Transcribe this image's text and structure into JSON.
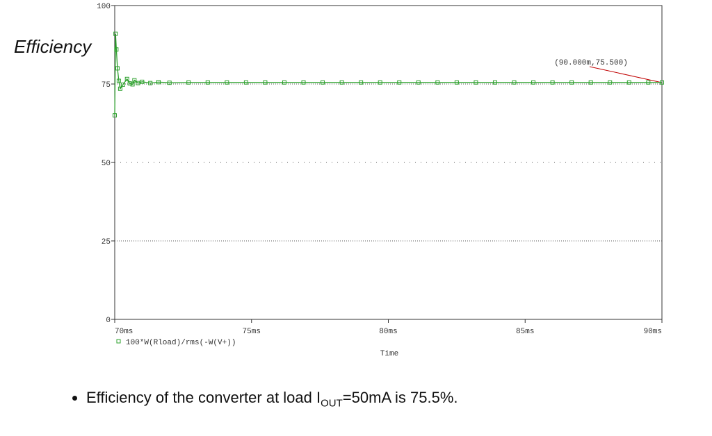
{
  "chart_data": {
    "type": "line",
    "title": "Efficiency",
    "x_label": "Time",
    "x": [
      70,
      70.03,
      70.06,
      70.1,
      70.15,
      70.2,
      70.3,
      70.45,
      70.55,
      70.65,
      70.72,
      70.85,
      71,
      71.3,
      71.6,
      72,
      72.7,
      73.4,
      74.1,
      74.8,
      75.5,
      76.2,
      76.9,
      77.6,
      78.3,
      79,
      79.7,
      80.4,
      81.1,
      81.8,
      82.5,
      83.2,
      83.9,
      84.6,
      85.3,
      86,
      86.7,
      87.4,
      88.1,
      88.8,
      89.5,
      90
    ],
    "series": [
      {
        "name": "100*W(Rload)/rms(-W(V+))",
        "color": "#2ca02c",
        "values": [
          65,
          91,
          86,
          80,
          76,
          73.5,
          74.8,
          76.6,
          75.2,
          74.9,
          76.2,
          75.3,
          75.7,
          75.3,
          75.6,
          75.4,
          75.5,
          75.5,
          75.5,
          75.5,
          75.5,
          75.5,
          75.5,
          75.5,
          75.5,
          75.5,
          75.5,
          75.5,
          75.5,
          75.5,
          75.5,
          75.5,
          75.5,
          75.5,
          75.5,
          75.5,
          75.5,
          75.5,
          75.5,
          75.5,
          75.5,
          75.5
        ]
      }
    ],
    "xlim": [
      70,
      90
    ],
    "xticks": [
      {
        "value": 70,
        "label": "70ms"
      },
      {
        "value": 75,
        "label": "75ms"
      },
      {
        "value": 80,
        "label": "80ms"
      },
      {
        "value": 85,
        "label": "85ms"
      },
      {
        "value": 90,
        "label": "90ms"
      }
    ],
    "ylim": [
      0,
      100
    ],
    "yticks": [
      0,
      25,
      50,
      75,
      100
    ],
    "grid": true,
    "annotation": "(90.000m,75.500)",
    "note": {
      "text_before": "Efficiency of the converter at load I",
      "subscript": "OUT",
      "text_after": "=50mA is 75.5%."
    }
  }
}
